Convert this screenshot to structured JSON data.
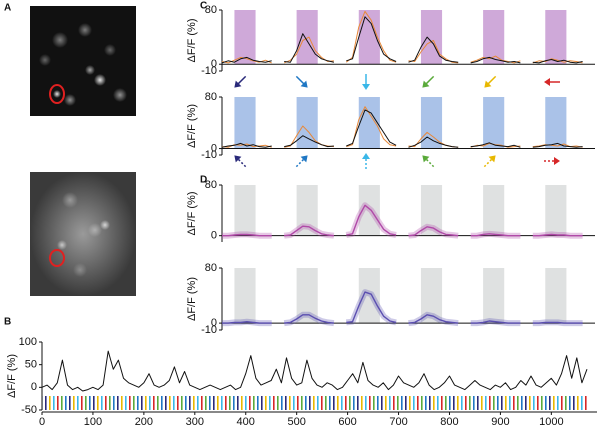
{
  "panel_labels": {
    "a": "A",
    "b": "B",
    "c": "C",
    "d": "D"
  },
  "chart_data": [
    {
      "type": "line",
      "ylabel": "ΔF/F (%)",
      "xlim": [
        0,
        1070
      ],
      "ylim": [
        -50,
        100
      ],
      "yticks": [
        -50,
        0,
        50,
        100
      ],
      "xticks": [
        0,
        100,
        200,
        300,
        400,
        500,
        600,
        700,
        800,
        900,
        1000
      ],
      "x": [
        0,
        10,
        20,
        30,
        40,
        50,
        60,
        70,
        80,
        90,
        100,
        110,
        120,
        130,
        140,
        150,
        160,
        170,
        180,
        190,
        200,
        210,
        220,
        230,
        240,
        250,
        260,
        270,
        280,
        290,
        300,
        310,
        320,
        330,
        340,
        350,
        360,
        370,
        380,
        390,
        400,
        410,
        420,
        430,
        440,
        450,
        460,
        470,
        480,
        490,
        500,
        510,
        520,
        530,
        540,
        550,
        560,
        570,
        580,
        590,
        600,
        610,
        620,
        630,
        640,
        650,
        660,
        670,
        680,
        690,
        700,
        710,
        720,
        730,
        740,
        750,
        760,
        770,
        780,
        790,
        800,
        810,
        820,
        830,
        840,
        850,
        860,
        870,
        880,
        890,
        900,
        910,
        920,
        930,
        940,
        950,
        960,
        970,
        980,
        990,
        1000,
        1010,
        1020,
        1030,
        1040,
        1050,
        1060,
        1070
      ],
      "series": [
        {
          "color": "#111111",
          "values": [
            0,
            5,
            -5,
            10,
            60,
            5,
            -5,
            0,
            -8,
            -5,
            0,
            -5,
            5,
            80,
            40,
            60,
            20,
            10,
            5,
            0,
            10,
            30,
            5,
            0,
            5,
            15,
            45,
            10,
            35,
            5,
            0,
            -5,
            0,
            5,
            0,
            -5,
            0,
            5,
            -5,
            0,
            30,
            70,
            20,
            5,
            10,
            15,
            40,
            10,
            65,
            20,
            5,
            10,
            60,
            20,
            5,
            0,
            10,
            5,
            -5,
            0,
            15,
            30,
            10,
            55,
            15,
            5,
            0,
            10,
            -5,
            5,
            25,
            10,
            5,
            0,
            10,
            30,
            5,
            -5,
            0,
            10,
            25,
            5,
            0,
            -5,
            5,
            15,
            5,
            0,
            -5,
            5,
            0,
            10,
            -5,
            0,
            15,
            5,
            25,
            5,
            0,
            10,
            20,
            5,
            30,
            70,
            20,
            65,
            10,
            40
          ]
        }
      ]
    },
    {
      "type": "line",
      "ylabel": "ΔF/F (%)",
      "xlim": [
        0,
        60
      ],
      "ylim": [
        -10,
        80
      ],
      "yticks": [
        -10,
        0,
        80
      ],
      "window_color": "#cfa9d9",
      "stimulus_windows": [
        [
          2,
          5.4
        ],
        [
          12,
          15.4
        ],
        [
          22,
          25.4
        ],
        [
          32,
          35.4
        ],
        [
          42,
          45.4
        ],
        [
          52,
          55.4
        ]
      ],
      "x": [
        0,
        1,
        2,
        3,
        4,
        5,
        6,
        7,
        8,
        9,
        10,
        11,
        12,
        13,
        14,
        15,
        16,
        17,
        18,
        19,
        20,
        21,
        22,
        23,
        24,
        25,
        26,
        27,
        28,
        29,
        30,
        31,
        32,
        33,
        34,
        35,
        36,
        37,
        38,
        39,
        40,
        41,
        42,
        43,
        44,
        45,
        46,
        47,
        48,
        49,
        50,
        51,
        52,
        53,
        54,
        55,
        56,
        57,
        58,
        59
      ],
      "series": [
        {
          "color": "#e8893a",
          "values": [
            4,
            2,
            6,
            10,
            8,
            5,
            3,
            6,
            2,
            null,
            2,
            6,
            15,
            35,
            40,
            20,
            10,
            4,
            5,
            null,
            3,
            10,
            55,
            78,
            65,
            40,
            20,
            6,
            3,
            null,
            5,
            4,
            18,
            30,
            35,
            15,
            8,
            3,
            2,
            null,
            3,
            6,
            10,
            8,
            12,
            6,
            4,
            2,
            5,
            null,
            2,
            5,
            4,
            8,
            6,
            3,
            5,
            4,
            2,
            null
          ]
        },
        {
          "color": "#111111",
          "values": [
            2,
            5,
            3,
            8,
            10,
            6,
            4,
            3,
            5,
            null,
            4,
            3,
            20,
            45,
            30,
            15,
            8,
            5,
            3,
            null,
            5,
            8,
            40,
            70,
            60,
            35,
            15,
            8,
            4,
            null,
            3,
            6,
            25,
            40,
            30,
            12,
            6,
            4,
            3,
            null,
            2,
            4,
            8,
            10,
            7,
            5,
            3,
            4,
            2,
            null,
            3,
            2,
            5,
            7,
            4,
            6,
            3,
            2,
            4,
            null
          ]
        }
      ]
    },
    {
      "type": "line",
      "ylabel": "ΔF/F (%)",
      "xlim": [
        0,
        60
      ],
      "ylim": [
        -10,
        80
      ],
      "yticks": [
        -10,
        0,
        80
      ],
      "window_color": "#aac2e8",
      "stimulus_windows": [
        [
          2,
          5.4
        ],
        [
          12,
          15.4
        ],
        [
          22,
          25.4
        ],
        [
          32,
          35.4
        ],
        [
          42,
          45.4
        ],
        [
          52,
          55.4
        ]
      ],
      "x": [
        0,
        1,
        2,
        3,
        4,
        5,
        6,
        7,
        8,
        9,
        10,
        11,
        12,
        13,
        14,
        15,
        16,
        17,
        18,
        19,
        20,
        21,
        22,
        23,
        24,
        25,
        26,
        27,
        28,
        29,
        30,
        31,
        32,
        33,
        34,
        35,
        36,
        37,
        38,
        39,
        40,
        41,
        42,
        43,
        44,
        45,
        46,
        47,
        48,
        49,
        50,
        51,
        52,
        53,
        54,
        55,
        56,
        57,
        58,
        59
      ],
      "series": [
        {
          "color": "#e8893a",
          "values": [
            3,
            2,
            6,
            5,
            7,
            3,
            4,
            5,
            2,
            null,
            2,
            4,
            20,
            35,
            25,
            12,
            6,
            4,
            3,
            null,
            3,
            6,
            45,
            65,
            50,
            35,
            15,
            6,
            4,
            null,
            4,
            3,
            15,
            25,
            18,
            10,
            5,
            3,
            2,
            null,
            2,
            5,
            4,
            8,
            6,
            5,
            2,
            3,
            4,
            null,
            3,
            4,
            6,
            5,
            4,
            7,
            3,
            4,
            2,
            null
          ]
        },
        {
          "color": "#111111",
          "values": [
            2,
            4,
            5,
            8,
            4,
            6,
            3,
            2,
            4,
            null,
            3,
            5,
            12,
            20,
            15,
            10,
            6,
            3,
            4,
            null,
            4,
            8,
            35,
            60,
            55,
            40,
            25,
            10,
            5,
            null,
            2,
            5,
            10,
            18,
            12,
            8,
            5,
            3,
            2,
            null,
            3,
            4,
            6,
            9,
            5,
            4,
            3,
            5,
            2,
            null,
            2,
            3,
            5,
            6,
            8,
            4,
            3,
            2,
            3,
            null
          ]
        }
      ]
    },
    {
      "type": "line",
      "ylabel": "ΔF/F (%)",
      "xlim": [
        0,
        60
      ],
      "ylim": [
        -10,
        80
      ],
      "yticks": [
        0,
        80
      ],
      "shaded_error": true,
      "window_color": "#dfe1e1",
      "stimulus_windows": [
        [
          2,
          5.4
        ],
        [
          12,
          15.4
        ],
        [
          22,
          25.4
        ],
        [
          32,
          35.4
        ],
        [
          42,
          45.4
        ],
        [
          52,
          55.4
        ]
      ],
      "x": [
        0,
        1,
        2,
        3,
        4,
        5,
        6,
        7,
        8,
        9,
        10,
        11,
        12,
        13,
        14,
        15,
        16,
        17,
        18,
        19,
        20,
        21,
        22,
        23,
        24,
        25,
        26,
        27,
        28,
        29,
        30,
        31,
        32,
        33,
        34,
        35,
        36,
        37,
        38,
        39,
        40,
        41,
        42,
        43,
        44,
        45,
        46,
        47,
        48,
        49,
        50,
        51,
        52,
        53,
        54,
        55,
        56,
        57,
        58,
        59
      ],
      "series": [
        {
          "color": "#b04aa8",
          "values": [
            0,
            0,
            1,
            2,
            2,
            1,
            0,
            0,
            0,
            null,
            0,
            1,
            8,
            15,
            14,
            8,
            3,
            1,
            0,
            null,
            1,
            3,
            30,
            48,
            40,
            25,
            10,
            3,
            1,
            null,
            0,
            1,
            8,
            14,
            12,
            6,
            2,
            1,
            0,
            null,
            0,
            0,
            2,
            3,
            2,
            1,
            0,
            0,
            0,
            null,
            0,
            0,
            1,
            2,
            1,
            1,
            0,
            0,
            0,
            null
          ]
        }
      ]
    },
    {
      "type": "line",
      "ylabel": "ΔF/F (%)",
      "xlim": [
        0,
        60
      ],
      "ylim": [
        -10,
        80
      ],
      "yticks": [
        -10,
        0,
        80
      ],
      "shaded_error": true,
      "window_color": "#dfe1e1",
      "stimulus_windows": [
        [
          2,
          5.4
        ],
        [
          12,
          15.4
        ],
        [
          22,
          25.4
        ],
        [
          32,
          35.4
        ],
        [
          42,
          45.4
        ],
        [
          52,
          55.4
        ]
      ],
      "x": [
        0,
        1,
        2,
        3,
        4,
        5,
        6,
        7,
        8,
        9,
        10,
        11,
        12,
        13,
        14,
        15,
        16,
        17,
        18,
        19,
        20,
        21,
        22,
        23,
        24,
        25,
        26,
        27,
        28,
        29,
        30,
        31,
        32,
        33,
        34,
        35,
        36,
        37,
        38,
        39,
        40,
        41,
        42,
        43,
        44,
        45,
        46,
        47,
        48,
        49,
        50,
        51,
        52,
        53,
        54,
        55,
        56,
        57,
        58,
        59
      ],
      "series": [
        {
          "color": "#5b4fb0",
          "values": [
            0,
            0,
            1,
            1,
            2,
            1,
            0,
            0,
            0,
            null,
            0,
            1,
            6,
            12,
            12,
            7,
            3,
            1,
            0,
            null,
            1,
            2,
            25,
            45,
            42,
            25,
            10,
            3,
            1,
            null,
            0,
            1,
            6,
            12,
            10,
            5,
            2,
            1,
            0,
            null,
            0,
            0,
            1,
            3,
            2,
            1,
            0,
            0,
            0,
            null,
            0,
            0,
            1,
            1,
            1,
            0,
            0,
            0,
            0,
            null
          ]
        }
      ]
    }
  ]
}
